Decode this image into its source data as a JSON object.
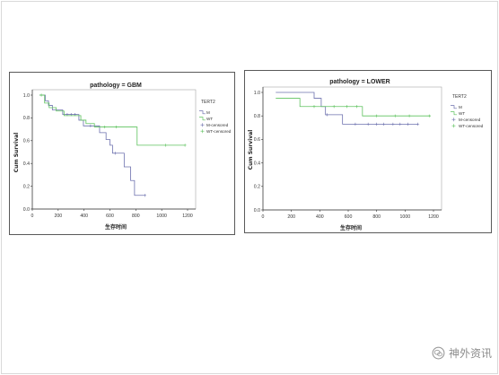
{
  "watermark": {
    "text": "神外资讯",
    "icon": "wechat-icon",
    "color": "#8c8c8c"
  },
  "chart_data": [
    {
      "type": "line",
      "title": "pathology = GBM",
      "xlabel": "生存时间",
      "ylabel": "Cum Survival",
      "xlim": [
        0,
        1200
      ],
      "ylim": [
        0,
        1
      ],
      "xticks": [
        "0",
        "200",
        "400",
        "600",
        "800",
        "1000",
        "1200"
      ],
      "yticks": [
        "0.0",
        "0.2",
        "0.4",
        "0.6",
        "0.8",
        "1.0"
      ],
      "grid": false,
      "legend": {
        "title": "TERT2",
        "position": "right",
        "entries": [
          "M",
          "WT",
          "M-censored",
          "WT-censored"
        ]
      },
      "series": [
        {
          "name": "M",
          "color": "#6d71ae",
          "steps": [
            [
              55,
              1.0
            ],
            [
              100,
              0.95
            ],
            [
              125,
              0.91
            ],
            [
              155,
              0.87
            ],
            [
              235,
              0.83
            ],
            [
              360,
              0.78
            ],
            [
              395,
              0.73
            ],
            [
              520,
              0.67
            ],
            [
              570,
              0.61
            ],
            [
              600,
              0.56
            ],
            [
              620,
              0.49
            ],
            [
              710,
              0.37
            ],
            [
              760,
              0.25
            ],
            [
              790,
              0.12
            ]
          ],
          "end": 870,
          "censored": [
            [
              270,
              0.83
            ],
            [
              300,
              0.83
            ],
            [
              330,
              0.83
            ],
            [
              450,
              0.73
            ],
            [
              640,
              0.49
            ],
            [
              870,
              0.12
            ]
          ]
        },
        {
          "name": "WT",
          "color": "#5ec25e",
          "steps": [
            [
              55,
              1.0
            ],
            [
              95,
              0.93
            ],
            [
              130,
              0.89
            ],
            [
              185,
              0.86
            ],
            [
              245,
              0.82
            ],
            [
              375,
              0.78
            ],
            [
              415,
              0.75
            ],
            [
              480,
              0.72
            ],
            [
              810,
              0.56
            ]
          ],
          "end": 1180,
          "censored": [
            [
              70,
              1.0
            ],
            [
              560,
              0.72
            ],
            [
              650,
              0.72
            ],
            [
              1030,
              0.56
            ],
            [
              1180,
              0.56
            ]
          ]
        }
      ]
    },
    {
      "type": "line",
      "title": "pathology = LOWER",
      "xlabel": "生存时间",
      "ylabel": "Cum Survival",
      "xlim": [
        0,
        1200
      ],
      "ylim": [
        0,
        1
      ],
      "xticks": [
        "0",
        "200",
        "400",
        "600",
        "800",
        "1000",
        "1200"
      ],
      "yticks": [
        "0.0",
        "0.2",
        "0.4",
        "0.6",
        "0.8",
        "1.0"
      ],
      "grid": false,
      "legend": {
        "title": "TERT2",
        "position": "right",
        "entries": [
          "M",
          "WT",
          "M-censored",
          "WT-censored"
        ]
      },
      "series": [
        {
          "name": "M",
          "color": "#6d71ae",
          "steps": [
            [
              90,
              1.0
            ],
            [
              360,
              0.95
            ],
            [
              410,
              0.88
            ],
            [
              440,
              0.81
            ],
            [
              560,
              0.73
            ]
          ],
          "end": 1090,
          "censored": [
            [
              450,
              0.81
            ],
            [
              650,
              0.73
            ],
            [
              740,
              0.73
            ],
            [
              800,
              0.73
            ],
            [
              850,
              0.73
            ],
            [
              915,
              0.73
            ],
            [
              965,
              0.73
            ],
            [
              1020,
              0.73
            ],
            [
              1090,
              0.73
            ]
          ]
        },
        {
          "name": "WT",
          "color": "#5ec25e",
          "steps": [
            [
              90,
              0.95
            ],
            [
              260,
              0.88
            ],
            [
              700,
              0.8
            ]
          ],
          "end": 1180,
          "censored": [
            [
              360,
              0.88
            ],
            [
              500,
              0.88
            ],
            [
              590,
              0.88
            ],
            [
              660,
              0.88
            ],
            [
              800,
              0.8
            ],
            [
              930,
              0.8
            ],
            [
              1030,
              0.8
            ],
            [
              1170,
              0.8
            ]
          ]
        }
      ]
    }
  ]
}
